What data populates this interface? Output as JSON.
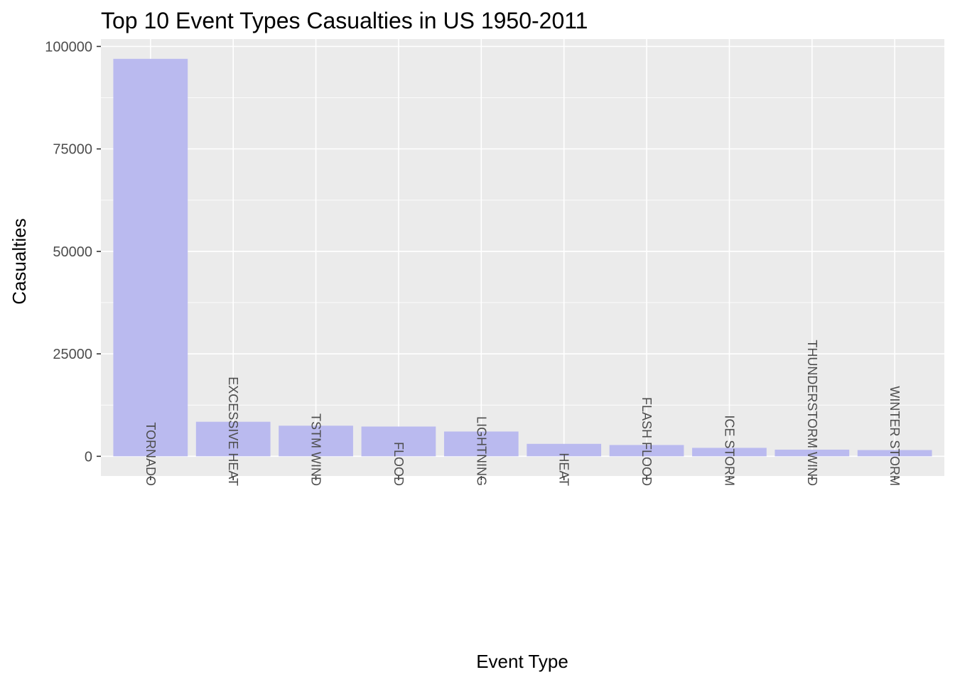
{
  "chart_data": {
    "type": "bar",
    "title": "Top 10 Event Types Casualties in US 1950-2011",
    "xlabel": "Event Type",
    "ylabel": "Casualties",
    "categories": [
      "TORNADO",
      "EXCESSIVE HEAT",
      "TSTM WIND",
      "FLOOD",
      "LIGHTNING",
      "HEAT",
      "FLASH FLOOD",
      "ICE STORM",
      "THUNDERSTORM WIND",
      "WINTER STORM"
    ],
    "values": [
      96979,
      8428,
      7461,
      7259,
      6046,
      3037,
      2755,
      2064,
      1621,
      1527
    ],
    "ylim": [
      -4800,
      101800
    ],
    "yticks": [
      0,
      25000,
      50000,
      75000,
      100000
    ],
    "ytick_labels": [
      "0",
      "25000",
      "50000",
      "75000",
      "100000"
    ],
    "grid": true,
    "bar_color": "#BABAEF",
    "panel_background": "#EBEBEB",
    "grid_color": "#FFFFFF"
  }
}
